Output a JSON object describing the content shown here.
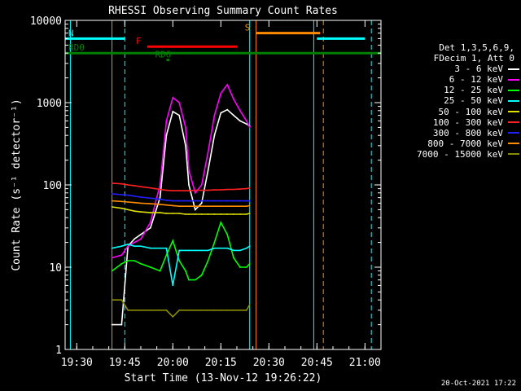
{
  "chart_data": {
    "type": "line",
    "title": "RHESSI Observing Summary Count Rates",
    "xlabel": "Start Time (13-Nov-12 19:26:22)",
    "ylabel": "Count Rate (s⁻¹ detector⁻¹)",
    "xlim": [
      "19:26:22",
      "21:05:00"
    ],
    "ylim": [
      1,
      10000
    ],
    "yscale": "log",
    "xticks": [
      "19:30",
      "19:45",
      "20:00",
      "20:15",
      "20:30",
      "20:45",
      "21:00"
    ],
    "yticks": [
      "1",
      "10",
      "100",
      "1000",
      "10000"
    ],
    "legend_placement": "right",
    "legend_header": [
      "Det 1,3,5,6,9,",
      "FDecim 1, Att 0"
    ],
    "series": [
      {
        "name": "3 - 6 keV",
        "color": "#ffffff",
        "x": [
          "19:41",
          "19:44",
          "19:46",
          "19:48",
          "19:50",
          "19:53",
          "19:56",
          "19:58",
          "20:00",
          "20:02",
          "20:04",
          "20:05",
          "20:07",
          "20:09",
          "20:11",
          "20:13",
          "20:15",
          "20:17",
          "20:19",
          "20:21",
          "20:23",
          "20:24"
        ],
        "values": [
          2,
          2,
          18,
          22,
          25,
          30,
          70,
          400,
          780,
          700,
          300,
          100,
          50,
          60,
          150,
          400,
          750,
          820,
          700,
          600,
          550,
          520
        ]
      },
      {
        "name": "6 - 12 keV",
        "color": "#ff00ff",
        "x": [
          "19:41",
          "19:44",
          "19:46",
          "19:48",
          "19:50",
          "19:53",
          "19:56",
          "19:58",
          "20:00",
          "20:02",
          "20:04",
          "20:05",
          "20:07",
          "20:09",
          "20:11",
          "20:13",
          "20:15",
          "20:17",
          "20:19",
          "20:21",
          "20:23",
          "20:24"
        ],
        "values": [
          13,
          14,
          18,
          20,
          22,
          35,
          100,
          600,
          1150,
          1000,
          500,
          150,
          80,
          100,
          250,
          700,
          1300,
          1650,
          1100,
          800,
          600,
          500
        ]
      },
      {
        "name": "12 - 25 keV",
        "color": "#00ff00",
        "x": [
          "19:41",
          "19:44",
          "19:46",
          "19:48",
          "19:50",
          "19:53",
          "19:56",
          "19:58",
          "20:00",
          "20:02",
          "20:04",
          "20:05",
          "20:07",
          "20:09",
          "20:11",
          "20:13",
          "20:15",
          "20:17",
          "20:19",
          "20:21",
          "20:23",
          "20:24"
        ],
        "values": [
          9,
          11,
          12,
          12,
          11,
          10,
          9,
          14,
          21,
          12,
          9,
          7,
          7,
          8,
          12,
          20,
          35,
          25,
          13,
          10,
          10,
          11
        ]
      },
      {
        "name": "25 - 50 keV",
        "color": "#00ffff",
        "x": [
          "19:41",
          "19:44",
          "19:46",
          "19:48",
          "19:50",
          "19:53",
          "19:56",
          "19:58",
          "20:00",
          "20:02",
          "20:04",
          "20:05",
          "20:07",
          "20:09",
          "20:11",
          "20:13",
          "20:15",
          "20:17",
          "20:19",
          "20:21",
          "20:23",
          "20:24"
        ],
        "values": [
          17,
          18,
          19,
          18,
          18,
          17,
          17,
          17,
          6,
          16,
          16,
          16,
          16,
          16,
          16,
          17,
          17,
          17,
          16,
          16,
          17,
          18
        ]
      },
      {
        "name": "50 - 100 keV",
        "color": "#e0e000",
        "x": [
          "19:41",
          "19:44",
          "19:46",
          "19:48",
          "19:50",
          "19:53",
          "19:56",
          "19:58",
          "20:00",
          "20:02",
          "20:04",
          "20:05",
          "20:07",
          "20:09",
          "20:11",
          "20:13",
          "20:15",
          "20:17",
          "20:19",
          "20:21",
          "20:23",
          "20:24"
        ],
        "values": [
          54,
          52,
          50,
          48,
          47,
          46,
          46,
          45,
          45,
          45,
          44,
          44,
          44,
          44,
          44,
          44,
          44,
          44,
          44,
          44,
          44,
          45
        ]
      },
      {
        "name": "100 - 300 keV",
        "color": "#ff2020",
        "x": [
          "19:41",
          "19:44",
          "19:46",
          "19:48",
          "19:50",
          "19:53",
          "19:56",
          "19:58",
          "20:00",
          "20:02",
          "20:04",
          "20:05",
          "20:07",
          "20:09",
          "20:11",
          "20:13",
          "20:15",
          "20:17",
          "20:19",
          "20:21",
          "20:23",
          "20:24"
        ],
        "values": [
          105,
          103,
          100,
          98,
          95,
          92,
          88,
          86,
          85,
          85,
          85,
          85,
          86,
          86,
          86,
          87,
          87,
          88,
          88,
          89,
          90,
          92
        ]
      },
      {
        "name": "300 - 800 keV",
        "color": "#2020ff",
        "x": [
          "19:41",
          "19:44",
          "19:46",
          "19:48",
          "19:50",
          "19:53",
          "19:56",
          "19:58",
          "20:00",
          "20:02",
          "20:04",
          "20:05",
          "20:07",
          "20:09",
          "20:11",
          "20:13",
          "20:15",
          "20:17",
          "20:19",
          "20:21",
          "20:23",
          "20:24"
        ],
        "values": [
          78,
          76,
          75,
          73,
          71,
          69,
          67,
          65,
          64,
          64,
          64,
          64,
          64,
          64,
          64,
          64,
          64,
          64,
          64,
          64,
          64,
          64
        ]
      },
      {
        "name": "800 - 7000 keV",
        "color": "#ff8c00",
        "x": [
          "19:41",
          "19:44",
          "19:46",
          "19:48",
          "19:50",
          "19:53",
          "19:56",
          "19:58",
          "20:00",
          "20:02",
          "20:04",
          "20:05",
          "20:07",
          "20:09",
          "20:11",
          "20:13",
          "20:15",
          "20:17",
          "20:19",
          "20:21",
          "20:23",
          "20:24"
        ],
        "values": [
          64,
          63,
          62,
          61,
          60,
          59,
          58,
          57,
          56,
          55,
          55,
          55,
          55,
          55,
          55,
          55,
          55,
          55,
          55,
          55,
          55,
          56
        ]
      },
      {
        "name": "7000 - 15000 keV",
        "color": "#8b8b00",
        "x": [
          "19:41",
          "19:44",
          "19:46",
          "19:48",
          "19:50",
          "19:53",
          "19:56",
          "19:58",
          "20:00",
          "20:02",
          "20:04",
          "20:05",
          "20:07",
          "20:09",
          "20:11",
          "20:13",
          "20:15",
          "20:17",
          "20:19",
          "20:21",
          "20:23",
          "20:24"
        ],
        "values": [
          4,
          4,
          3,
          3,
          3,
          3,
          3,
          3,
          2.5,
          3,
          3,
          3,
          3,
          3,
          3,
          3,
          3,
          3,
          3,
          3,
          3,
          3.5
        ]
      }
    ],
    "flag_bars": [
      {
        "label": "N",
        "color": "#00ffff",
        "y": 6000,
        "segments": [
          [
            "19:26:22",
            "19:45"
          ],
          [
            "20:45",
            "21:00"
          ]
        ]
      },
      {
        "label": "S",
        "color": "#ff8c00",
        "y": 7000,
        "segments": [
          [
            "20:26",
            "20:46"
          ]
        ]
      },
      {
        "label": "F",
        "color": "#ff0000",
        "y": 4800,
        "segments": [
          [
            "19:52",
            "20:20"
          ]
        ]
      },
      {
        "label": "RD0",
        "color": "#008000",
        "y": 4000,
        "segments": [
          [
            "19:26:22",
            "21:05"
          ]
        ]
      },
      {
        "label": "RD6",
        "color": "#008000",
        "y": 3300,
        "segments": [
          [
            "19:58",
            "19:59"
          ]
        ]
      }
    ],
    "vlines": [
      {
        "time": "19:28",
        "color": "#00ffff",
        "style": "solid"
      },
      {
        "time": "19:45",
        "color": "#00ffff",
        "style": "dashed"
      },
      {
        "time": "19:41",
        "color": "#ff8c00",
        "style": "solid"
      },
      {
        "time": "20:24",
        "color": "#00ffff",
        "style": "solid"
      },
      {
        "time": "20:26",
        "color": "#ff8c00",
        "style": "solid"
      },
      {
        "time": "20:44",
        "color": "#00ffff",
        "style": "solid"
      },
      {
        "time": "20:47",
        "color": "#ff8c00",
        "style": "dashed"
      },
      {
        "time": "21:02",
        "color": "#00ffff",
        "style": "dashed"
      }
    ]
  },
  "timestamp": "20-Oct-2021 17:22"
}
